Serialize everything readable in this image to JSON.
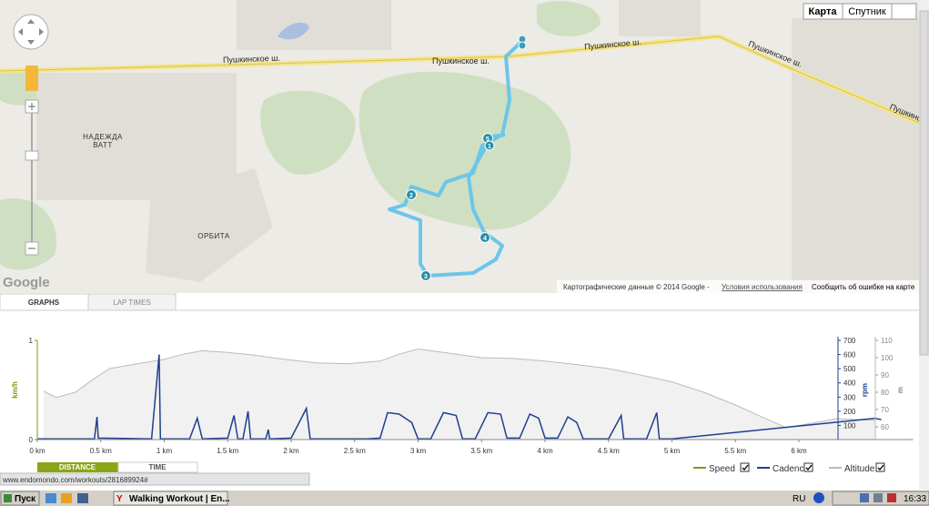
{
  "map": {
    "type_buttons": [
      "Карта",
      "Спутник"
    ],
    "road_labels": [
      "Пушкинское ш.",
      "Пушкинское ш.",
      "Пушкинское ш.",
      "Пушкинское ш.",
      "Пушкинское ш."
    ],
    "place_labels": [
      [
        "НАДЕЖДА",
        "ВАТТ"
      ],
      [
        "ОРБИТА"
      ]
    ],
    "logo": "Google",
    "attribution": "Картографические данные © 2014 Google -",
    "terms": "Условия использования",
    "report": "Сообщить об ошибке на карте",
    "markers": [
      "5",
      "1",
      "2",
      "3",
      "4"
    ]
  },
  "tabs": [
    "GRAPHS",
    "LAP TIMES"
  ],
  "chart_data": {
    "type": "line",
    "xlim": [
      0,
      6.9
    ],
    "xticks": [
      {
        "value": 0,
        "label": "0 km"
      },
      {
        "value": 0.5,
        "label": "0.5 km"
      },
      {
        "value": 1,
        "label": "1 km"
      },
      {
        "value": 1.5,
        "label": "1.5 km"
      },
      {
        "value": 2,
        "label": "2 km"
      },
      {
        "value": 2.5,
        "label": "2.5 km"
      },
      {
        "value": 3,
        "label": "3 km"
      },
      {
        "value": 3.5,
        "label": "3.5 km"
      },
      {
        "value": 4,
        "label": "4 km"
      },
      {
        "value": 4.5,
        "label": "4.5 km"
      },
      {
        "value": 5,
        "label": "5 km"
      },
      {
        "value": 5.5,
        "label": "5.5 km"
      },
      {
        "value": 6,
        "label": "6 km"
      }
    ],
    "ylabel": "km/h",
    "ylim": [
      0,
      1
    ],
    "yticks": [
      0,
      1
    ],
    "y2label": "rpm",
    "y2lim": [
      0,
      700
    ],
    "y2ticks": [
      100,
      200,
      300,
      400,
      500,
      600,
      700
    ],
    "y3label": "m",
    "y3lim": [
      52.6,
      110
    ],
    "y3ticks": [
      60,
      70,
      80,
      90,
      100,
      110
    ],
    "series": [
      {
        "name": "Speed",
        "color": "#7f9a10",
        "axis": "y"
      },
      {
        "name": "Cadence",
        "color": "#1f3f8f",
        "axis": "y2",
        "x": [
          0,
          0.45,
          0.47,
          0.48,
          0.9,
          0.96,
          0.97,
          1.2,
          1.26,
          1.3,
          1.5,
          1.55,
          1.58,
          1.62,
          1.66,
          1.68,
          1.8,
          1.82,
          1.83,
          2.0,
          2.08,
          2.12,
          2.15,
          2.6,
          2.7,
          2.76,
          2.85,
          2.95,
          3.0,
          3.1,
          3.2,
          3.3,
          3.35,
          3.45,
          3.55,
          3.65,
          3.7,
          3.8,
          3.88,
          3.95,
          4.0,
          4.1,
          4.18,
          4.25,
          4.3,
          4.5,
          4.6,
          4.62,
          4.8,
          4.88,
          4.9,
          5.0,
          6.6,
          6.65
        ],
        "values": [
          5,
          5,
          160,
          10,
          5,
          600,
          5,
          5,
          150,
          5,
          10,
          170,
          5,
          5,
          200,
          5,
          5,
          70,
          5,
          10,
          150,
          220,
          5,
          5,
          10,
          190,
          180,
          120,
          5,
          5,
          190,
          170,
          5,
          5,
          190,
          180,
          10,
          10,
          180,
          150,
          10,
          10,
          160,
          120,
          5,
          5,
          170,
          5,
          5,
          190,
          5,
          5,
          150,
          140
        ]
      },
      {
        "name": "Altitude",
        "color": "#bbbbbb",
        "axis": "y3",
        "x": [
          0.05,
          0.15,
          0.3,
          0.45,
          0.57,
          0.75,
          1.0,
          1.15,
          1.3,
          1.5,
          1.7,
          1.95,
          2.2,
          2.45,
          2.7,
          2.85,
          3.0,
          3.2,
          3.5,
          3.75,
          4.0,
          4.25,
          4.5,
          4.75,
          5.0,
          5.25,
          5.5,
          5.7,
          5.9,
          6.1,
          6.3,
          6.5,
          6.6
        ],
        "values": [
          80.5,
          77,
          80,
          88,
          93.7,
          96,
          99,
          102,
          104,
          103,
          101.5,
          99,
          97,
          96.5,
          98,
          102,
          105,
          103,
          100,
          99.5,
          98,
          96,
          93.7,
          90,
          86,
          80,
          72.6,
          66,
          59.5,
          62,
          64.7,
          64,
          63.7
        ]
      }
    ]
  },
  "x_mode_buttons": [
    "DISTANCE",
    "TIME"
  ],
  "status_url": "www.endomondo.com/workouts/281689924#",
  "taskbar": {
    "start": "Пуск",
    "window": "Walking Workout | En...",
    "lang": "RU",
    "time": "16:33"
  }
}
